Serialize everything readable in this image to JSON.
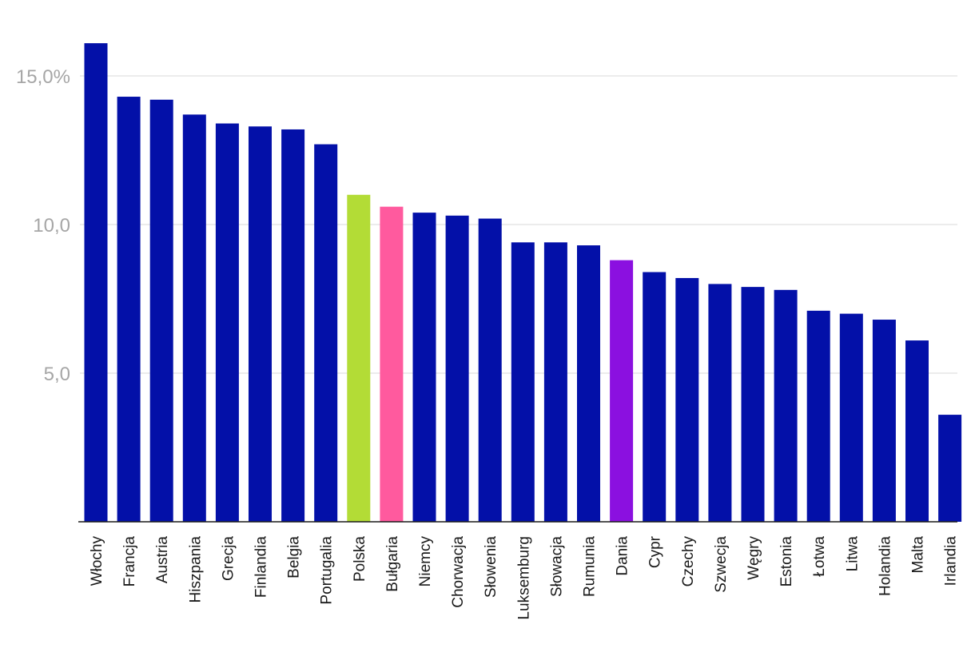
{
  "chart_data": {
    "type": "bar",
    "title": "",
    "xlabel": "",
    "ylabel": "",
    "ylim": [
      0,
      16.5
    ],
    "grid": true,
    "y_ticks": [
      {
        "value": 5,
        "label": "5,0"
      },
      {
        "value": 10,
        "label": "10,0"
      },
      {
        "value": 15,
        "label": "15,0%"
      }
    ],
    "categories": [
      "Włochy",
      "Francja",
      "Austria",
      "Hiszpania",
      "Grecja",
      "Finlandia",
      "Belgia",
      "Portugalia",
      "Polska",
      "Bułgaria",
      "Niemcy",
      "Chorwacja",
      "Słowenia",
      "Luksemburg",
      "Słowacja",
      "Rumunia",
      "Dania",
      "Cypr",
      "Czechy",
      "Szwecja",
      "Węgry",
      "Estonia",
      "Łotwa",
      "Litwa",
      "Holandia",
      "Malta",
      "Irlandia"
    ],
    "values": [
      16.1,
      14.3,
      14.2,
      13.7,
      13.4,
      13.3,
      13.2,
      12.7,
      11.0,
      10.6,
      10.4,
      10.3,
      10.2,
      9.4,
      9.4,
      9.3,
      8.8,
      8.4,
      8.2,
      8.0,
      7.9,
      7.8,
      7.1,
      7.0,
      6.8,
      6.1,
      3.6
    ],
    "colors": [
      "#0310a8",
      "#0310a8",
      "#0310a8",
      "#0310a8",
      "#0310a8",
      "#0310a8",
      "#0310a8",
      "#0310a8",
      "#b3dc36",
      "#ff5a9e",
      "#0310a8",
      "#0310a8",
      "#0310a8",
      "#0310a8",
      "#0310a8",
      "#0310a8",
      "#8b10e0",
      "#0310a8",
      "#0310a8",
      "#0310a8",
      "#0310a8",
      "#0310a8",
      "#0310a8",
      "#0310a8",
      "#0310a8",
      "#0310a8",
      "#0310a8"
    ]
  }
}
